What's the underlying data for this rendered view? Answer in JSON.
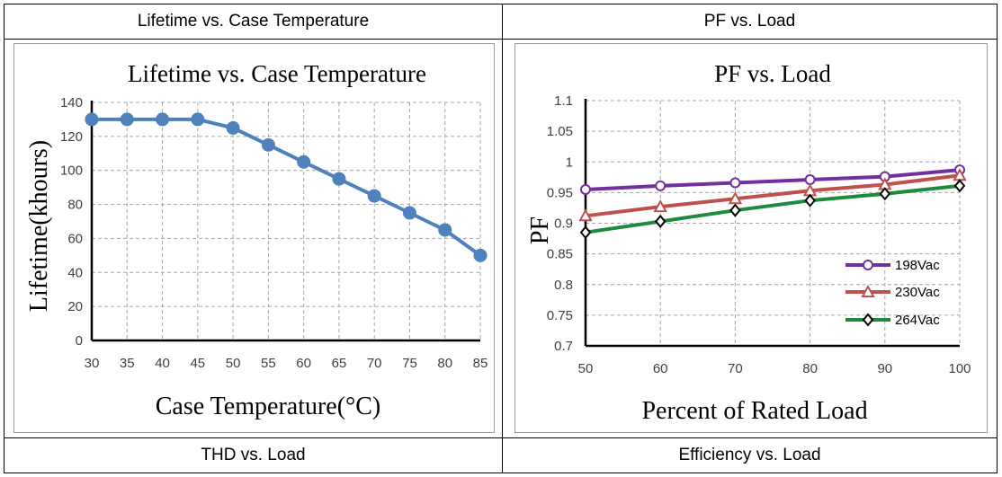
{
  "headers": {
    "top_left": "Lifetime vs. Case Temperature",
    "top_right": "PF vs. Load",
    "bottom_left": "THD vs. Load",
    "bottom_right": "Efficiency vs. Load"
  },
  "colors": {
    "lifetime_series": "#4f81bd",
    "s198": "#7030a0",
    "s230": "#c0504d",
    "s264": "#1e8a3c"
  },
  "chart_data": [
    {
      "type": "line",
      "title": "Lifetime vs. Case Temperature",
      "xlabel": "Case Temperature(°C)",
      "ylabel": "Lifetime(khours)",
      "x": [
        30,
        35,
        40,
        45,
        50,
        55,
        60,
        65,
        70,
        75,
        80,
        85
      ],
      "y": [
        130,
        130,
        130,
        130,
        125,
        115,
        105,
        95,
        85,
        75,
        65,
        50
      ],
      "xticks": [
        "30",
        "35",
        "40",
        "45",
        "50",
        "55",
        "60",
        "65",
        "70",
        "75",
        "80",
        "85"
      ],
      "yticks": [
        "0",
        "20",
        "40",
        "60",
        "80",
        "100",
        "120",
        "140"
      ],
      "xlim": [
        30,
        85
      ],
      "ylim": [
        0,
        140
      ],
      "grid": true
    },
    {
      "type": "line",
      "title": "PF vs. Load",
      "xlabel": "Percent of Rated Load",
      "ylabel": "PF",
      "x": [
        50,
        60,
        70,
        80,
        90,
        100
      ],
      "xticks": [
        "50",
        "60",
        "70",
        "80",
        "90",
        "100"
      ],
      "yticks": [
        "0.7",
        "0.75",
        "0.8",
        "0.85",
        "0.9",
        "0.95",
        "1",
        "1.05",
        "1.1"
      ],
      "xlim": [
        50,
        100
      ],
      "ylim": [
        0.7,
        1.1
      ],
      "grid": true,
      "legend_position": "right",
      "series": [
        {
          "name": "198Vac",
          "marker": "circle",
          "values": [
            0.955,
            0.961,
            0.966,
            0.971,
            0.976,
            0.987
          ]
        },
        {
          "name": "230Vac",
          "marker": "triangle",
          "values": [
            0.912,
            0.927,
            0.94,
            0.953,
            0.963,
            0.978
          ]
        },
        {
          "name": "264Vac",
          "marker": "diamond",
          "values": [
            0.885,
            0.903,
            0.921,
            0.937,
            0.948,
            0.961
          ]
        }
      ]
    }
  ]
}
